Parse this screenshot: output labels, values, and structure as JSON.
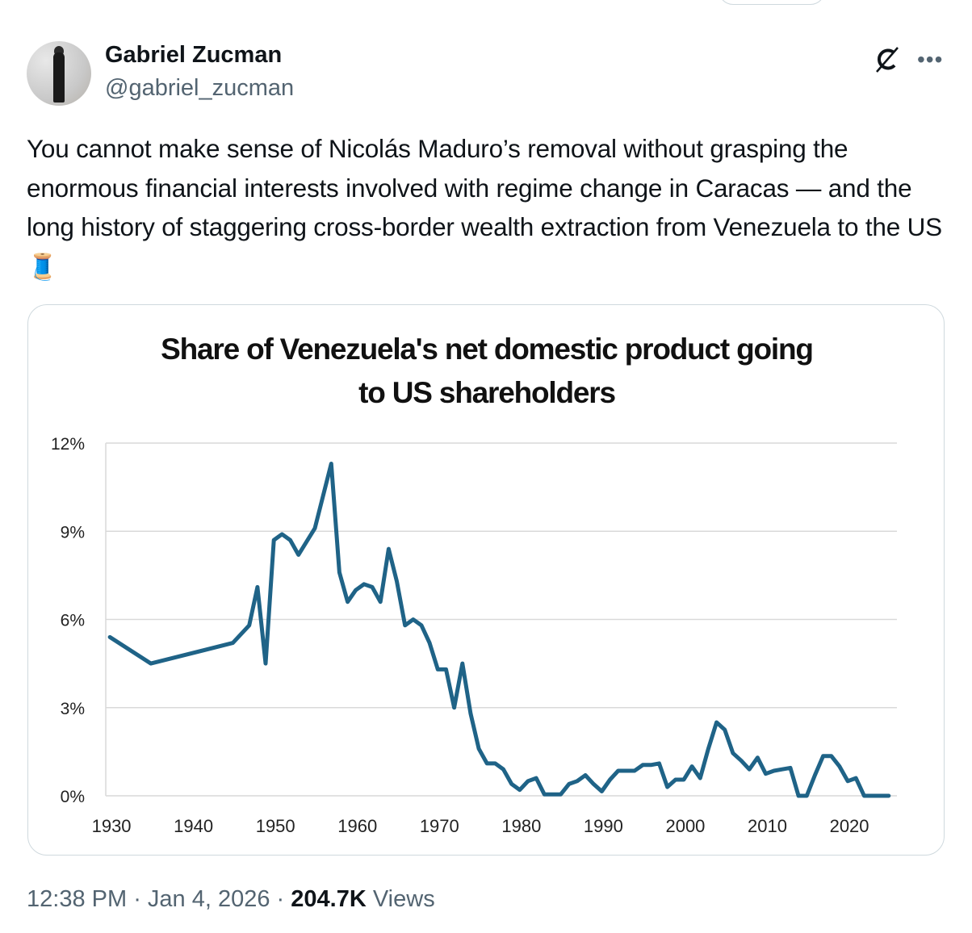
{
  "author": {
    "name": "Gabriel Zucman",
    "handle": "@gabriel_zucman"
  },
  "icons": {
    "grok": "grok-icon",
    "more": "more-icon",
    "thread": "spool-of-thread-emoji"
  },
  "tweet": {
    "text": "You cannot make sense of Nicolás Maduro’s removal without grasping the enormous financial interests involved with regime change in Caracas — and the long history of staggering cross-border wealth extraction from Venezuela to the US",
    "emoji": "🧵"
  },
  "meta": {
    "time": "12:38 PM",
    "date": "Jan 4, 2026",
    "views_count": "204.7K",
    "views_label": "Views",
    "sep": " · "
  },
  "colors": {
    "line": "#1f6387",
    "grid": "#d9d9d9",
    "muted": "#536471"
  },
  "chart_data": {
    "type": "line",
    "title": "Share of Venezuela's net domestic product going to US shareholders",
    "title_lines": [
      "Share of Venezuela's net domestic product going",
      "to US shareholders"
    ],
    "xlabel": "",
    "ylabel": "",
    "xlim": [
      1929.5,
      2026
    ],
    "ylim": [
      0,
      12
    ],
    "x_ticks": [
      1930,
      1940,
      1950,
      1960,
      1970,
      1980,
      1990,
      2000,
      2010,
      2020
    ],
    "x_tick_labels": [
      "1930",
      "1940",
      "1950",
      "1960",
      "1970",
      "1980",
      "1990",
      "2000",
      "2010",
      "2020"
    ],
    "y_ticks": [
      0,
      3,
      6,
      9,
      12
    ],
    "y_tick_labels": [
      "0%",
      "3%",
      "6%",
      "9%",
      "12%"
    ],
    "grid": true,
    "legend": "none",
    "series": [
      {
        "name": "Share to US shareholders (%)",
        "x": [
          1930,
          1935,
          1945,
          1947,
          1948,
          1949,
          1950,
          1951,
          1952,
          1953,
          1955,
          1957,
          1958,
          1959,
          1960,
          1961,
          1962,
          1963,
          1964,
          1965,
          1966,
          1967,
          1968,
          1969,
          1970,
          1971,
          1972,
          1973,
          1974,
          1975,
          1976,
          1977,
          1978,
          1979,
          1980,
          1981,
          1982,
          1983,
          1984,
          1985,
          1986,
          1987,
          1988,
          1989,
          1990,
          1991,
          1992,
          1993,
          1994,
          1995,
          1996,
          1997,
          1998,
          1999,
          2000,
          2001,
          2002,
          2003,
          2004,
          2005,
          2006,
          2007,
          2008,
          2009,
          2010,
          2011,
          2012,
          2013,
          2014,
          2015,
          2016,
          2017,
          2018,
          2019,
          2020,
          2021,
          2022,
          2023,
          2024,
          2025
        ],
        "values": [
          5.4,
          4.5,
          5.2,
          5.8,
          7.1,
          4.5,
          8.7,
          8.9,
          8.7,
          8.2,
          9.1,
          11.3,
          7.6,
          6.6,
          7.0,
          7.2,
          7.1,
          6.6,
          8.4,
          7.3,
          5.8,
          6.0,
          5.8,
          5.2,
          4.3,
          4.3,
          3.0,
          4.5,
          2.8,
          1.6,
          1.1,
          1.1,
          0.9,
          0.4,
          0.2,
          0.5,
          0.6,
          0.05,
          0.05,
          0.05,
          0.4,
          0.5,
          0.7,
          0.4,
          0.15,
          0.55,
          0.85,
          0.85,
          0.85,
          1.05,
          1.05,
          1.1,
          0.3,
          0.55,
          0.55,
          1.0,
          0.6,
          1.6,
          2.5,
          2.25,
          1.45,
          1.2,
          0.9,
          1.3,
          0.75,
          0.85,
          0.9,
          0.95,
          0,
          0,
          0.7,
          1.35,
          1.35,
          1.0,
          0.5,
          0.6,
          0,
          0,
          0,
          0
        ]
      }
    ]
  }
}
